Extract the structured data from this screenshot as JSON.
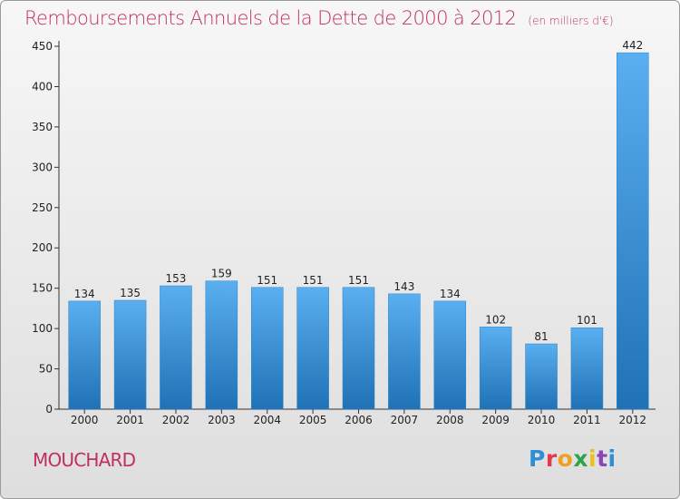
{
  "title": "Remboursements Annuels de la Dette de 2000 à 2012",
  "unit": "(en milliers d'€)",
  "commune": "MOUCHARD",
  "logo": [
    "P",
    "r",
    "o",
    "x",
    "i",
    "t",
    "i"
  ],
  "colors": {
    "title": "#c0305f",
    "bar_light": "#5aaff0",
    "bar_dark": "#1f72b5"
  },
  "chart_data": {
    "type": "bar",
    "title": "Remboursements Annuels de la Dette de 2000 à 2012",
    "subtitle": "(en milliers d'€)",
    "xlabel": "",
    "ylabel": "",
    "categories": [
      "2000",
      "2001",
      "2002",
      "2003",
      "2004",
      "2005",
      "2006",
      "2007",
      "2008",
      "2009",
      "2010",
      "2011",
      "2012"
    ],
    "values": [
      134,
      135,
      153,
      159,
      151,
      151,
      151,
      143,
      134,
      102,
      81,
      101,
      442
    ],
    "ylim": [
      0,
      450
    ],
    "yticks": [
      0,
      50,
      100,
      150,
      200,
      250,
      300,
      350,
      400,
      450
    ],
    "grid": false,
    "data_labels": true
  }
}
